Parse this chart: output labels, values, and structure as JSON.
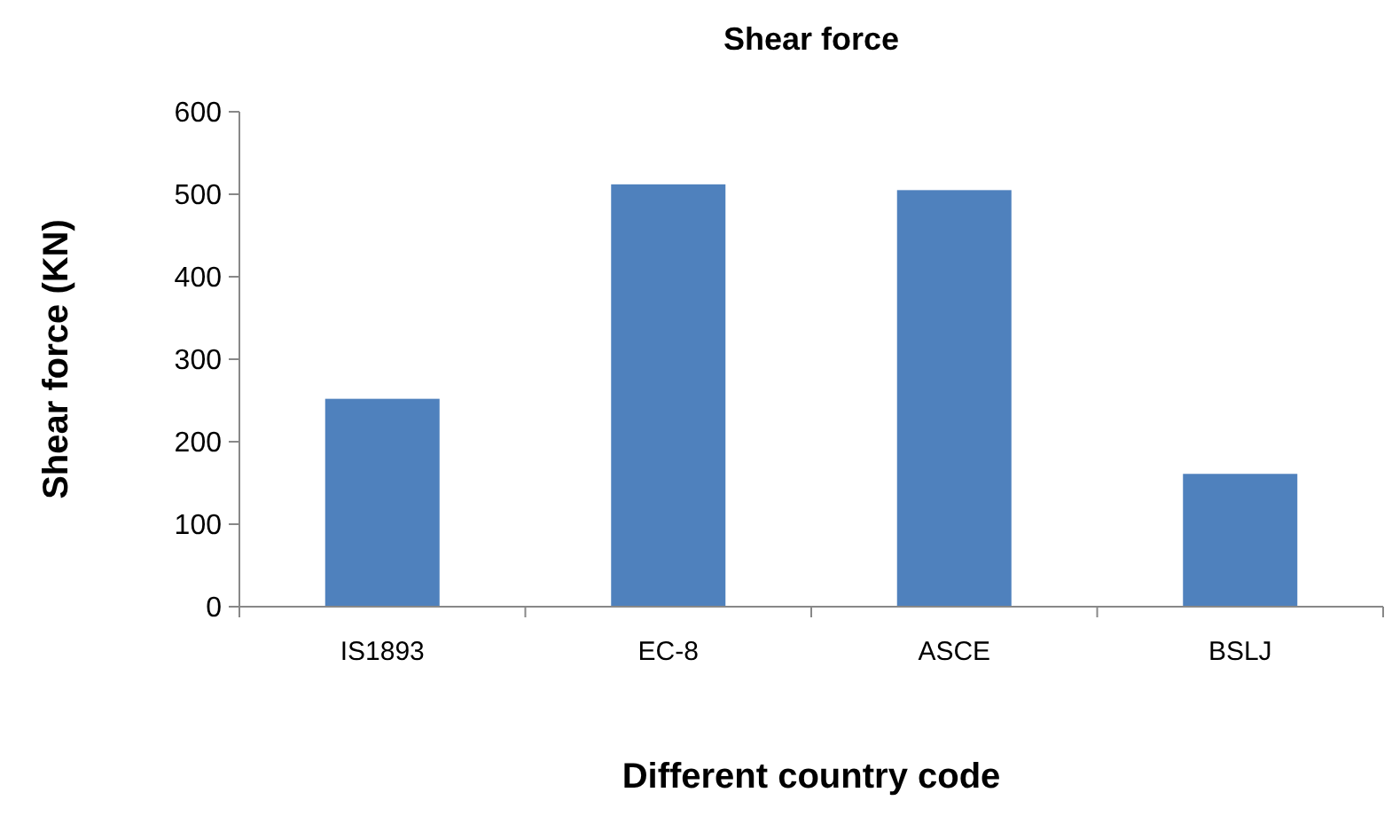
{
  "chart_data": {
    "type": "bar",
    "title": "Shear force",
    "xlabel": "Different country code",
    "ylabel": "Shear force (KN)",
    "categories": [
      "IS1893",
      "EC-8",
      "ASCE",
      "BSLJ"
    ],
    "values": [
      252,
      512,
      505,
      161
    ],
    "color": "#4f81bd",
    "ylim": [
      0,
      600
    ],
    "yticks": [
      0,
      100,
      200,
      300,
      400,
      500,
      600
    ]
  }
}
